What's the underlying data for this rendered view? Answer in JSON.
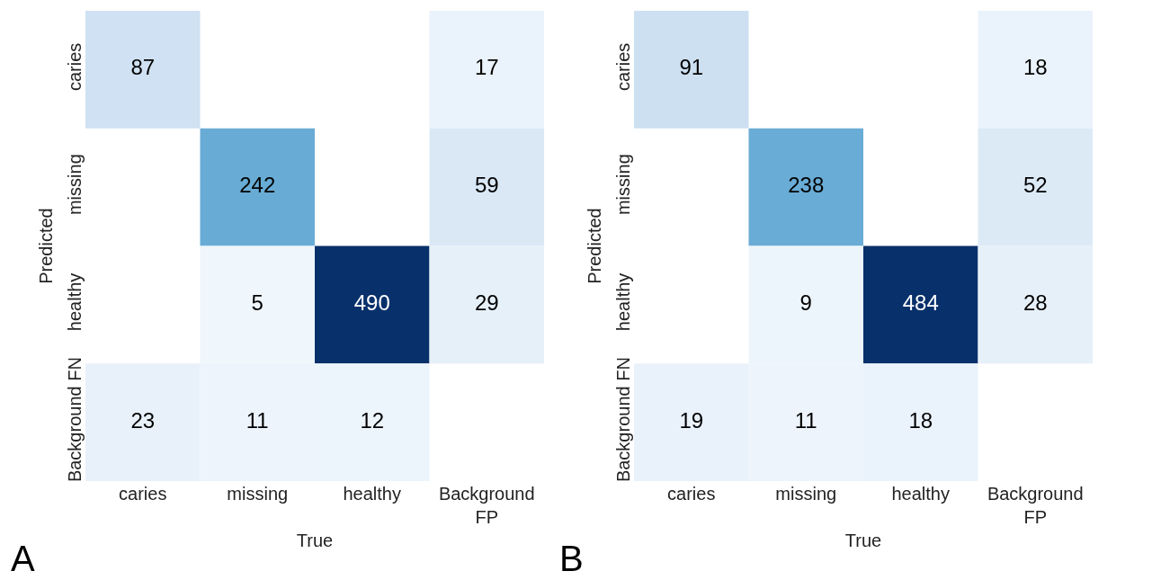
{
  "chart_data": [
    {
      "type": "heatmap",
      "xlabel": "True",
      "ylabel": "Predicted",
      "annotations": [
        "A"
      ],
      "categories": [
        "caries",
        "missing",
        "healthy",
        "Background FP"
      ],
      "y_categories": [
        "caries",
        "missing",
        "healthy",
        "Background FN"
      ],
      "cells": [
        [
          87,
          null,
          null,
          17
        ],
        [
          null,
          242,
          null,
          59
        ],
        [
          null,
          5,
          490,
          29
        ],
        [
          23,
          11,
          12,
          null
        ]
      ],
      "data_labels": true
    },
    {
      "type": "heatmap",
      "xlabel": "True",
      "ylabel": "Predicted",
      "annotations": [
        "B"
      ],
      "categories": [
        "caries",
        "missing",
        "healthy",
        "Background FP"
      ],
      "y_categories": [
        "caries",
        "missing",
        "healthy",
        "Background FN"
      ],
      "cells": [
        [
          91,
          null,
          null,
          18
        ],
        [
          null,
          238,
          null,
          52
        ],
        [
          null,
          9,
          484,
          28
        ],
        [
          19,
          11,
          18,
          null
        ]
      ],
      "data_labels": true
    }
  ]
}
